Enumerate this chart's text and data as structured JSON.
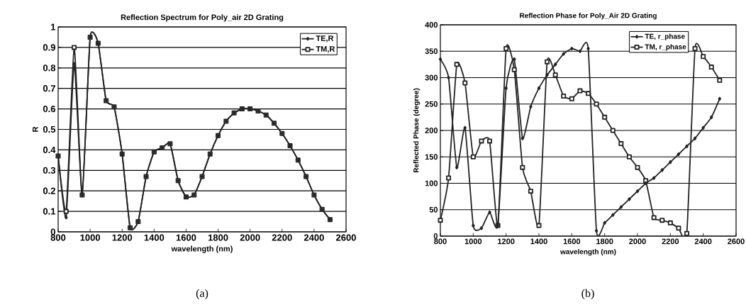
{
  "chart_data": [
    {
      "type": "line",
      "title": "Reflection Spectrum for Poly_air 2D Grating",
      "xlabel": "wavelength (nm)",
      "ylabel": "R",
      "xlim": [
        800,
        2600
      ],
      "xticks": [
        800,
        1000,
        1200,
        1400,
        1600,
        1800,
        2000,
        2200,
        2400,
        2600
      ],
      "ylim": [
        0,
        1
      ],
      "yticks": [
        0,
        0.1,
        0.2,
        0.3,
        0.4,
        0.5,
        0.6,
        0.7,
        0.8,
        0.9,
        1
      ],
      "grid": "y",
      "legend": "top right",
      "annotations": [
        "(a)"
      ],
      "x": [
        800,
        850,
        900,
        950,
        1000,
        1050,
        1100,
        1150,
        1200,
        1250,
        1300,
        1350,
        1400,
        1450,
        1500,
        1550,
        1600,
        1650,
        1700,
        1750,
        1800,
        1850,
        1900,
        1950,
        2000,
        2050,
        2100,
        2150,
        2200,
        2250,
        2300,
        2350,
        2400,
        2450,
        2500
      ],
      "series": [
        {
          "name": "TE,R",
          "color": "#222222",
          "marker": "diamond",
          "values": [
            0.37,
            0.07,
            0.82,
            0.18,
            0.95,
            0.92,
            0.64,
            0.61,
            0.38,
            0.02,
            0.05,
            0.27,
            0.39,
            0.41,
            0.43,
            0.25,
            0.17,
            0.18,
            0.27,
            0.38,
            0.47,
            0.54,
            0.58,
            0.6,
            0.6,
            0.59,
            0.57,
            0.53,
            0.48,
            0.42,
            0.35,
            0.27,
            0.18,
            0.11,
            0.06
          ]
        },
        {
          "name": "TM,R",
          "color": "#222222",
          "marker": "square",
          "values": [
            0.37,
            0.1,
            0.9,
            0.18,
            0.95,
            0.92,
            0.64,
            0.61,
            0.38,
            0.02,
            0.05,
            0.27,
            0.39,
            0.41,
            0.43,
            0.25,
            0.17,
            0.18,
            0.27,
            0.38,
            0.47,
            0.54,
            0.58,
            0.6,
            0.6,
            0.59,
            0.57,
            0.53,
            0.48,
            0.42,
            0.35,
            0.27,
            0.18,
            0.11,
            0.06
          ]
        }
      ]
    },
    {
      "type": "line",
      "title": "Reflection Phase for Poly_Air 2D Grating",
      "xlabel": "wavelength (nm)",
      "ylabel": "Reflected Phase (degree)",
      "xlim": [
        800,
        2600
      ],
      "xticks": [
        800,
        1000,
        1200,
        1400,
        1600,
        1800,
        2000,
        2200,
        2400,
        2600
      ],
      "ylim": [
        0,
        400
      ],
      "yticks": [
        0,
        50,
        100,
        150,
        200,
        250,
        300,
        350,
        400
      ],
      "grid": "y",
      "legend": "top right",
      "annotations": [
        "(b)"
      ],
      "x": [
        800,
        850,
        900,
        950,
        1000,
        1050,
        1100,
        1150,
        1200,
        1250,
        1300,
        1350,
        1400,
        1450,
        1500,
        1550,
        1600,
        1650,
        1700,
        1750,
        1800,
        1850,
        1900,
        1950,
        2000,
        2050,
        2100,
        2150,
        2200,
        2250,
        2300,
        2350,
        2400,
        2450,
        2500
      ],
      "series": [
        {
          "name": "TE, r_phase",
          "color": "#222222",
          "marker": "diamond",
          "values": [
            335,
            300,
            130,
            205,
            20,
            15,
            45,
            20,
            280,
            335,
            185,
            245,
            280,
            305,
            325,
            345,
            355,
            350,
            355,
            10,
            25,
            40,
            55,
            70,
            85,
            100,
            110,
            125,
            140,
            155,
            170,
            185,
            205,
            225,
            260
          ]
        },
        {
          "name": "TM, r_phase",
          "color": "#222222",
          "marker": "square",
          "values": [
            30,
            110,
            325,
            290,
            150,
            180,
            180,
            20,
            355,
            315,
            130,
            85,
            20,
            330,
            305,
            265,
            260,
            275,
            270,
            250,
            225,
            200,
            175,
            150,
            130,
            105,
            35,
            30,
            25,
            15,
            5,
            355,
            340,
            320,
            295
          ]
        }
      ]
    }
  ]
}
